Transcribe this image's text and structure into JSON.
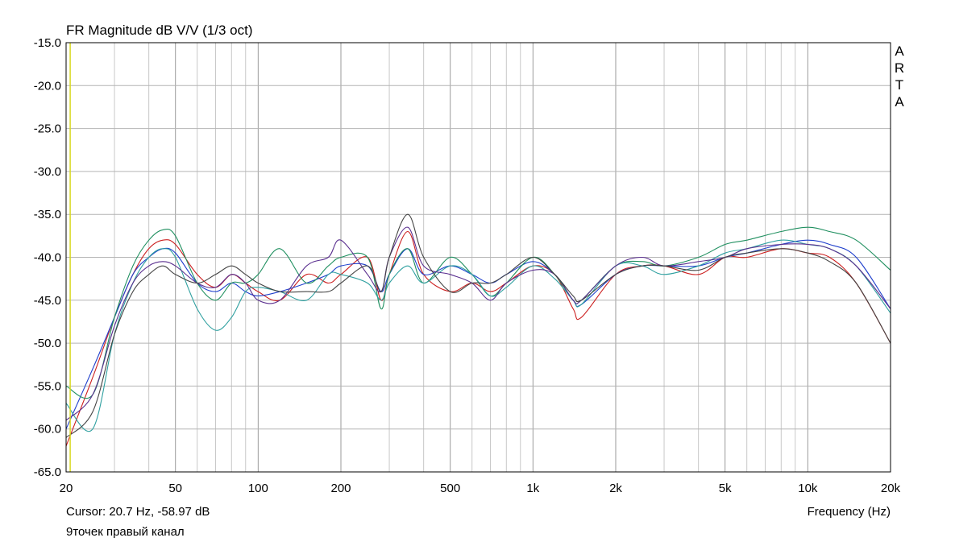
{
  "window": {
    "title": "FR Magnitude dB V/V (1/3 oct)",
    "watermark": "ARTA",
    "cursor_readout": "Cursor: 20.7 Hz, -58.97 dB",
    "caption": "9точек правый канал"
  },
  "chart_data": {
    "type": "line",
    "title": "FR Magnitude dB V/V (1/3 oct)",
    "xlabel": "Frequency (Hz)",
    "ylabel": "",
    "xscale": "log",
    "xlim": [
      20,
      20000
    ],
    "ylim": [
      -65,
      -15
    ],
    "grid": true,
    "legend": "none",
    "x_ticks": [
      20,
      50,
      100,
      200,
      500,
      1000,
      2000,
      5000,
      10000,
      20000
    ],
    "x_tick_labels": [
      "20",
      "50",
      "100",
      "200",
      "500",
      "1k",
      "2k",
      "5k",
      "10k",
      "20k"
    ],
    "y_ticks": [
      -15,
      -20,
      -25,
      -30,
      -35,
      -40,
      -45,
      -50,
      -55,
      -60,
      -65
    ],
    "y_tick_labels": [
      "-15.0",
      "-20.0",
      "-25.0",
      "-30.0",
      "-35.0",
      "-40.0",
      "-45.0",
      "-50.0",
      "-55.0",
      "-60.0",
      "-65.0"
    ],
    "cursor": {
      "x": 20.7,
      "color": "#d8d820"
    },
    "series": [
      {
        "color": "#cc1f1f",
        "x": [
          20,
          25,
          30,
          35,
          40,
          45,
          50,
          60,
          70,
          80,
          90,
          100,
          120,
          150,
          180,
          200,
          250,
          280,
          300,
          350,
          400,
          500,
          600,
          700,
          800,
          1000,
          1200,
          1400,
          1500,
          2000,
          2500,
          3000,
          4000,
          5000,
          6000,
          8000,
          10000,
          12000,
          15000,
          20000
        ],
        "y": [
          -62,
          -54,
          -47,
          -42,
          -39,
          -38,
          -38.5,
          -42,
          -43.5,
          -42,
          -43,
          -44,
          -45,
          -42,
          -43,
          -42,
          -40,
          -45,
          -42,
          -37,
          -42,
          -44,
          -43,
          -44,
          -43,
          -41,
          -42,
          -46,
          -47,
          -42,
          -41,
          -41,
          -42,
          -40,
          -40,
          -39,
          -39.5,
          -40,
          -43,
          -50
        ]
      },
      {
        "color": "#1f3fcc",
        "x": [
          20,
          25,
          30,
          35,
          40,
          45,
          50,
          60,
          70,
          80,
          90,
          100,
          120,
          150,
          180,
          200,
          250,
          280,
          300,
          350,
          400,
          500,
          600,
          700,
          800,
          1000,
          1200,
          1400,
          1500,
          2000,
          2500,
          3000,
          4000,
          5000,
          6000,
          8000,
          10000,
          12000,
          15000,
          20000
        ],
        "y": [
          -60,
          -53,
          -47,
          -42,
          -40,
          -39,
          -39.5,
          -43,
          -44,
          -43,
          -44,
          -44.5,
          -44,
          -43,
          -42,
          -41,
          -41,
          -44,
          -42,
          -39,
          -42,
          -41,
          -42,
          -43,
          -42,
          -40.5,
          -42,
          -45,
          -45.5,
          -42,
          -41,
          -41,
          -41,
          -40,
          -39.5,
          -38.5,
          -38,
          -38.5,
          -40,
          -46
        ]
      },
      {
        "color": "#1f8f5f",
        "x": [
          20,
          25,
          30,
          35,
          40,
          45,
          50,
          60,
          70,
          80,
          90,
          100,
          120,
          150,
          180,
          200,
          250,
          280,
          300,
          350,
          400,
          500,
          600,
          700,
          800,
          1000,
          1200,
          1400,
          1500,
          2000,
          2500,
          3000,
          4000,
          5000,
          6000,
          8000,
          10000,
          12000,
          15000,
          20000
        ],
        "y": [
          -55,
          -56,
          -47,
          -41,
          -38,
          -36.8,
          -37.5,
          -43,
          -45,
          -43,
          -43,
          -42,
          -39,
          -43,
          -41,
          -40,
          -40,
          -46,
          -42,
          -39,
          -43,
          -40,
          -42,
          -44.5,
          -43,
          -40,
          -42,
          -45,
          -45,
          -41,
          -40.5,
          -41,
          -40,
          -38.5,
          -38,
          -37,
          -36.5,
          -37,
          -38,
          -41.5
        ]
      },
      {
        "color": "#2fa0a0",
        "x": [
          20,
          25,
          30,
          35,
          40,
          45,
          50,
          60,
          70,
          80,
          90,
          100,
          120,
          150,
          180,
          200,
          250,
          280,
          300,
          350,
          400,
          500,
          600,
          700,
          800,
          1000,
          1200,
          1400,
          1500,
          2000,
          2500,
          3000,
          4000,
          5000,
          6000,
          8000,
          10000,
          12000,
          15000,
          20000
        ],
        "y": [
          -57,
          -60,
          -49,
          -43,
          -40,
          -39,
          -40,
          -46,
          -48.5,
          -47,
          -44,
          -43.5,
          -44,
          -45,
          -42,
          -42,
          -43,
          -45,
          -43,
          -41,
          -43,
          -41,
          -42,
          -44.5,
          -43.5,
          -41,
          -42.5,
          -45,
          -45.5,
          -41,
          -41,
          -42,
          -41,
          -39.5,
          -39,
          -38,
          -38.5,
          -39,
          -41,
          -46.5
        ]
      },
      {
        "color": "#5a2f8f",
        "x": [
          20,
          25,
          30,
          35,
          40,
          45,
          50,
          60,
          70,
          80,
          90,
          100,
          120,
          150,
          180,
          200,
          250,
          280,
          300,
          350,
          400,
          500,
          600,
          700,
          800,
          1000,
          1200,
          1400,
          1500,
          2000,
          2500,
          3000,
          4000,
          5000,
          6000,
          8000,
          10000,
          12000,
          15000,
          20000
        ],
        "y": [
          -59,
          -56,
          -48,
          -43,
          -41,
          -40.5,
          -41,
          -43,
          -43.5,
          -42,
          -43,
          -45,
          -45,
          -41,
          -40,
          -38,
          -42,
          -44,
          -40,
          -36.5,
          -41,
          -42,
          -43,
          -45,
          -43,
          -41.5,
          -42,
          -45,
          -45,
          -41,
          -40,
          -41,
          -40.5,
          -40,
          -39,
          -38.5,
          -38.5,
          -39,
          -41,
          -46
        ]
      },
      {
        "color": "#444444",
        "x": [
          20,
          25,
          30,
          35,
          40,
          45,
          50,
          60,
          70,
          80,
          90,
          100,
          120,
          150,
          180,
          200,
          250,
          280,
          300,
          350,
          400,
          500,
          600,
          700,
          800,
          1000,
          1200,
          1400,
          1500,
          2000,
          2500,
          3000,
          4000,
          5000,
          6000,
          8000,
          10000,
          12000,
          15000,
          20000
        ],
        "y": [
          -61,
          -58,
          -49,
          -44,
          -42,
          -41,
          -42,
          -43,
          -42,
          -41,
          -42,
          -43,
          -44,
          -44,
          -44,
          -43,
          -41,
          -44,
          -40,
          -35,
          -40,
          -44,
          -43,
          -43,
          -42,
          -40,
          -42,
          -44.5,
          -45,
          -42,
          -41,
          -41,
          -41.5,
          -40,
          -39.5,
          -39,
          -39.5,
          -40.5,
          -43,
          -50
        ]
      }
    ]
  }
}
